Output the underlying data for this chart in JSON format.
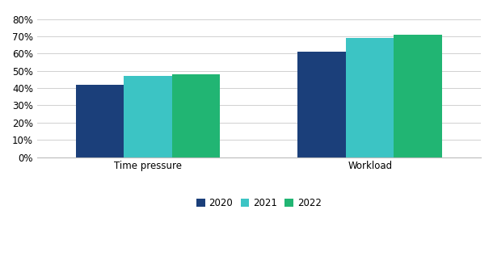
{
  "categories": [
    "Time pressure",
    "Workload"
  ],
  "years": [
    "2020",
    "2021",
    "2022"
  ],
  "values": {
    "Time pressure": [
      0.42,
      0.47,
      0.48
    ],
    "Workload": [
      0.61,
      0.69,
      0.71
    ]
  },
  "colors": {
    "2020": "#1b3f7a",
    "2021": "#3cc4c4",
    "2022": "#21b573"
  },
  "ylim": [
    0,
    0.84
  ],
  "yticks": [
    0.0,
    0.1,
    0.2,
    0.3,
    0.4,
    0.5,
    0.6,
    0.7,
    0.8
  ],
  "bar_width": 0.13,
  "group_centers": [
    0.25,
    0.85
  ],
  "legend_labels": [
    "2020",
    "2021",
    "2022"
  ],
  "background_color": "#ffffff",
  "grid_color": "#d0d0d0",
  "tick_label_fontsize": 8.5,
  "legend_fontsize": 8.5
}
